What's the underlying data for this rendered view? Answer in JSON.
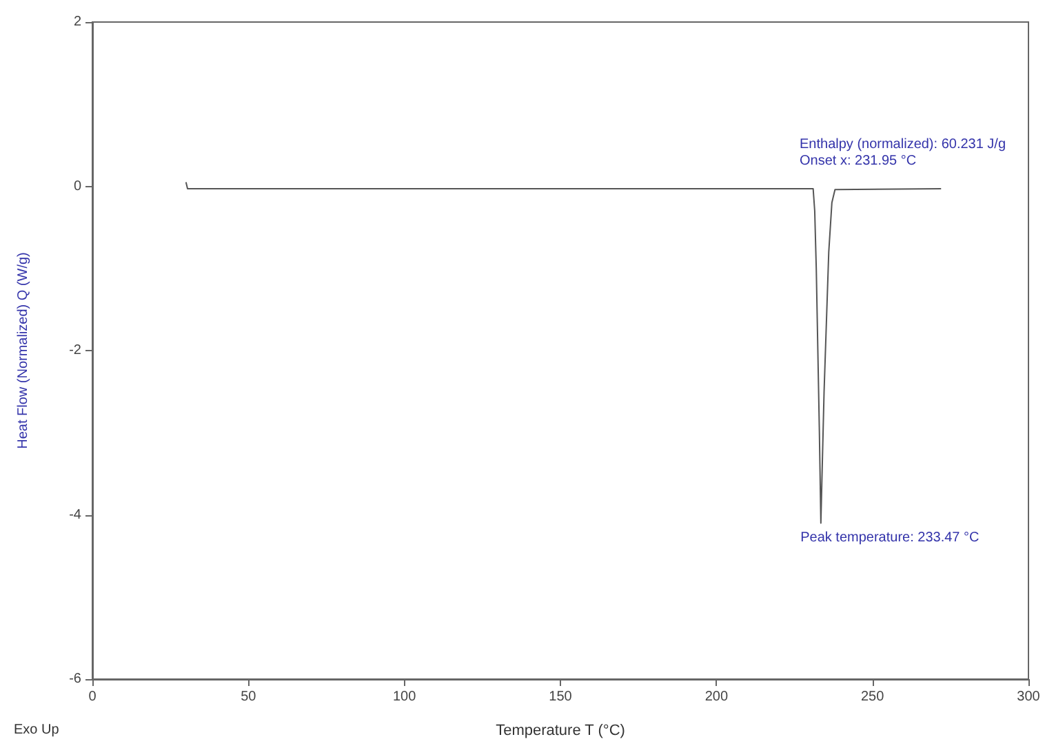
{
  "chart_data": {
    "type": "line",
    "xlabel": "Temperature T (°C)",
    "ylabel": "Heat Flow (Normalized) Q (W/g)",
    "x": [
      30,
      30.5,
      100,
      200,
      231,
      231.5,
      232,
      233,
      233.47,
      234.5,
      236,
      237,
      238,
      272
    ],
    "series": [
      {
        "color": "#555555",
        "values": [
          0.05,
          -0.03,
          -0.03,
          -0.03,
          -0.03,
          -0.3,
          -1.0,
          -3.0,
          -4.1,
          -2.5,
          -0.8,
          -0.2,
          -0.04,
          -0.03
        ]
      }
    ],
    "xlim": [
      0,
      300
    ],
    "xticks": [
      0,
      50,
      100,
      150,
      200,
      250,
      300
    ],
    "ylim": [
      -6,
      2
    ],
    "yticks": [
      -6,
      -4,
      -2,
      0,
      2
    ],
    "grid": false,
    "marker": "none",
    "line_style": "solid",
    "annotations": [
      "Enthalpy (normalized): 60.231 J/g",
      "Onset x: 231.95 °C",
      {
        "text": "Peak temperature: 233.47 °C",
        "x": 233.47,
        "y": -4.1
      },
      "Exo Up"
    ]
  }
}
